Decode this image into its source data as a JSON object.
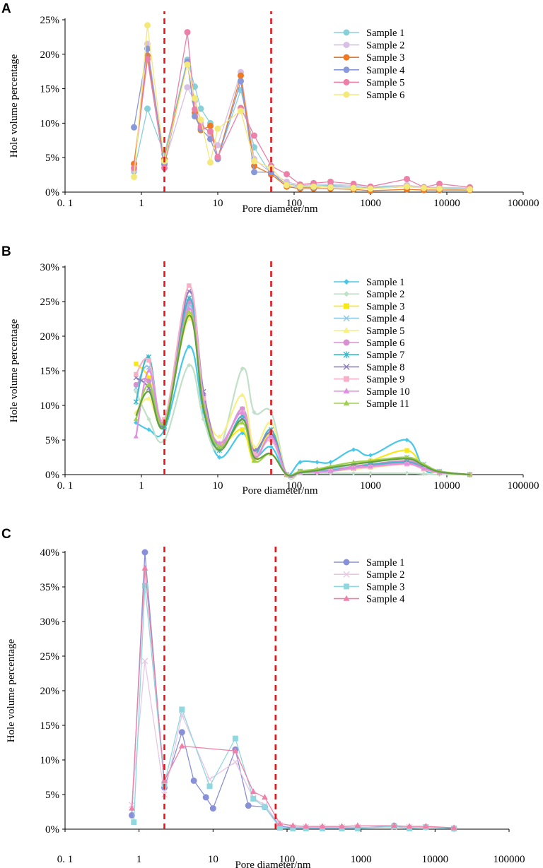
{
  "chart_data": [
    {
      "panel": "A",
      "type": "line",
      "xscale": "log",
      "xlabel": "Pore diameter/nm",
      "ylabel": "Hole volume percentage",
      "xticks": [
        {
          "v": 0.1,
          "label": "0. 1"
        },
        {
          "v": 1,
          "label": "1"
        },
        {
          "v": 10,
          "label": "10"
        },
        {
          "v": 100,
          "label": "100"
        },
        {
          "v": 1000,
          "label": "1000"
        },
        {
          "v": 10000,
          "label": "10000"
        },
        {
          "v": 100000,
          "label": "100000"
        }
      ],
      "yticks": [
        {
          "v": 0,
          "label": "0%"
        },
        {
          "v": 5,
          "label": "5%"
        },
        {
          "v": 10,
          "label": "10%"
        },
        {
          "v": 15,
          "label": "15%"
        },
        {
          "v": 20,
          "label": "20%"
        },
        {
          "v": 25,
          "label": "25%"
        }
      ],
      "ylim": [
        0,
        25
      ],
      "xlim": [
        0.1,
        100000
      ],
      "vlines": [
        2,
        50
      ],
      "legend_position": "top-right",
      "x": [
        0.8,
        1.2,
        2,
        4,
        5,
        6,
        8,
        10,
        20,
        30,
        50,
        80,
        120,
        180,
        300,
        600,
        1000,
        3000,
        5000,
        8000,
        20000
      ],
      "series": [
        {
          "name": "Sample 1",
          "color": "#88d0d8",
          "marker": "circle",
          "values": [
            3.0,
            12.1,
            5.5,
            19.2,
            15.3,
            12.1,
            10.0,
            5.0,
            14.8,
            6.5,
            2.5,
            1.2,
            0.9,
            0.9,
            1.0,
            0.8,
            0.6,
            1.0,
            0.7,
            0.6,
            0.5
          ]
        },
        {
          "name": "Sample 2",
          "color": "#d8c0e4",
          "marker": "circle",
          "values": [
            3.2,
            21.5,
            4.2,
            15.2,
            13.2,
            10.0,
            8.5,
            6.8,
            17.4,
            4.8,
            2.8,
            1.5,
            1.0,
            1.1,
            1.1,
            1.0,
            0.8,
            1.0,
            0.7,
            0.7,
            0.6
          ]
        },
        {
          "name": "Sample 3",
          "color": "#f07820",
          "marker": "circle",
          "values": [
            4.1,
            19.8,
            4.8,
            18.8,
            11.5,
            9.0,
            9.6,
            4.9,
            16.9,
            3.8,
            2.6,
            0.8,
            0.5,
            0.5,
            0.5,
            0.4,
            0.2,
            0.4,
            0.3,
            0.3,
            0.3
          ]
        },
        {
          "name": "Sample 4",
          "color": "#8898d8",
          "marker": "circle",
          "values": [
            9.4,
            20.8,
            4.0,
            18.9,
            11.0,
            9.2,
            7.7,
            4.8,
            16.1,
            2.9,
            2.9,
            1.0,
            0.7,
            0.7,
            0.8,
            0.6,
            0.5,
            0.8,
            0.6,
            0.5,
            0.4
          ]
        },
        {
          "name": "Sample 5",
          "color": "#ec80a8",
          "marker": "circle",
          "values": [
            3.5,
            19.3,
            3.5,
            23.2,
            12.0,
            9.5,
            8.8,
            5.1,
            12.2,
            8.2,
            3.8,
            2.6,
            1.1,
            1.3,
            1.5,
            1.2,
            0.8,
            1.9,
            0.7,
            1.2,
            0.7
          ]
        },
        {
          "name": "Sample 6",
          "color": "#f4e878",
          "marker": "circle",
          "values": [
            2.2,
            24.2,
            4.5,
            18.5,
            13.6,
            10.5,
            4.3,
            9.2,
            11.8,
            4.5,
            3.5,
            1.0,
            0.8,
            0.8,
            0.7,
            0.6,
            0.5,
            0.8,
            0.6,
            0.5,
            0.4
          ]
        }
      ]
    },
    {
      "panel": "B",
      "type": "line",
      "xscale": "log",
      "xlabel": "Pore diameter/nm",
      "ylabel": "Hole volume percentage",
      "xticks": [
        {
          "v": 0.1,
          "label": "0. 1"
        },
        {
          "v": 1,
          "label": "1"
        },
        {
          "v": 10,
          "label": "10"
        },
        {
          "v": 100,
          "label": "100"
        },
        {
          "v": 1000,
          "label": "1000"
        },
        {
          "v": 10000,
          "label": "10000"
        },
        {
          "v": 100000,
          "label": "100000"
        }
      ],
      "yticks": [
        {
          "v": 0,
          "label": "0%"
        },
        {
          "v": 5,
          "label": "5%"
        },
        {
          "v": 10,
          "label": "10%"
        },
        {
          "v": 15,
          "label": "15%"
        },
        {
          "v": 20,
          "label": "20%"
        },
        {
          "v": 25,
          "label": "25%"
        },
        {
          "v": 30,
          "label": "30%"
        }
      ],
      "ylim": [
        0,
        30
      ],
      "xlim": [
        0.1,
        100000
      ],
      "vlines": [
        2,
        50
      ],
      "legend_position": "top-right",
      "x": [
        0.85,
        1.25,
        2,
        4.2,
        6.5,
        10.5,
        21,
        30,
        50,
        80,
        120,
        200,
        300,
        600,
        1000,
        3000,
        5000,
        8000,
        20000
      ],
      "series": [
        {
          "name": "Sample 1",
          "color": "#48c8e8",
          "marker": "diamond",
          "values": [
            7.5,
            6.5,
            6.5,
            18.5,
            9.0,
            2.5,
            6.0,
            2.5,
            4.0,
            0.0,
            1.8,
            1.8,
            1.8,
            3.6,
            2.8,
            5.0,
            0.8,
            0.3,
            0.0
          ]
        },
        {
          "name": "Sample 2",
          "color": "#c0e0c8",
          "marker": "diamond",
          "values": [
            12.0,
            8.0,
            5.0,
            15.8,
            8.0,
            3.8,
            15.3,
            9.0,
            9.0,
            0.0,
            0.2,
            0.2,
            0.2,
            0.2,
            0.2,
            0.2,
            0.1,
            0.0,
            0.0
          ]
        },
        {
          "name": "Sample 3",
          "color": "#f8e818",
          "marker": "square",
          "values": [
            16.0,
            14.0,
            8.0,
            23.0,
            10.0,
            4.5,
            6.5,
            2.0,
            6.0,
            0.0,
            0.5,
            0.5,
            0.8,
            1.5,
            2.0,
            3.5,
            1.0,
            0.3,
            0.0
          ]
        },
        {
          "name": "Sample 4",
          "color": "#90c8e8",
          "marker": "x",
          "values": [
            12.5,
            15.5,
            7.0,
            24.5,
            10.5,
            4.0,
            9.5,
            3.5,
            6.0,
            0.0,
            0.5,
            0.6,
            0.8,
            1.5,
            1.8,
            2.5,
            1.5,
            0.5,
            0.0
          ]
        },
        {
          "name": "Sample 5",
          "color": "#f8f080",
          "marker": "triangle",
          "values": [
            9.0,
            11.0,
            7.5,
            22.5,
            11.0,
            5.5,
            11.5,
            4.0,
            7.5,
            0.0,
            0.3,
            0.4,
            0.5,
            0.8,
            1.0,
            1.5,
            0.8,
            0.2,
            0.0
          ]
        },
        {
          "name": "Sample 6",
          "color": "#d890d0",
          "marker": "circle",
          "values": [
            13.0,
            13.5,
            7.5,
            25.0,
            11.5,
            4.0,
            9.5,
            2.5,
            5.5,
            0.0,
            0.4,
            0.5,
            0.6,
            1.2,
            1.5,
            2.0,
            1.2,
            0.4,
            0.0
          ]
        },
        {
          "name": "Sample 7",
          "color": "#40b8c8",
          "marker": "asterisk",
          "values": [
            10.5,
            17.0,
            7.0,
            25.5,
            10.5,
            3.5,
            8.5,
            3.0,
            6.5,
            0.0,
            0.4,
            0.5,
            0.6,
            1.0,
            1.4,
            1.8,
            1.0,
            0.3,
            0.0
          ]
        },
        {
          "name": "Sample 8",
          "color": "#9080c0",
          "marker": "x",
          "values": [
            14.0,
            12.5,
            7.5,
            26.5,
            12.0,
            4.0,
            8.0,
            3.5,
            6.0,
            0.0,
            0.3,
            0.4,
            0.5,
            0.9,
            1.2,
            1.6,
            0.9,
            0.3,
            0.0
          ]
        },
        {
          "name": "Sample 9",
          "color": "#f8b0c8",
          "marker": "square",
          "values": [
            14.5,
            16.5,
            8.0,
            27.3,
            11.0,
            4.5,
            9.0,
            3.0,
            5.0,
            0.0,
            0.3,
            0.4,
            0.5,
            0.9,
            1.1,
            1.5,
            0.8,
            0.3,
            0.0
          ]
        },
        {
          "name": "Sample 10",
          "color": "#e090e0",
          "marker": "triangle",
          "values": [
            5.5,
            15.0,
            7.5,
            24.0,
            10.5,
            4.5,
            9.0,
            2.5,
            5.5,
            0.0,
            0.3,
            0.4,
            0.5,
            1.0,
            1.2,
            1.6,
            0.9,
            0.3,
            0.0
          ]
        },
        {
          "name": "Sample 11",
          "color": "#a0d050",
          "marker": "triangle",
          "values": [
            8.0,
            13.0,
            7.5,
            23.5,
            10.0,
            4.0,
            7.5,
            2.0,
            3.0,
            0.0,
            0.5,
            0.8,
            1.2,
            1.8,
            2.0,
            2.5,
            1.5,
            0.5,
            0.0
          ]
        },
        {
          "name": "",
          "color": "#60a040",
          "marker": "none",
          "values": [
            8.5,
            12.0,
            7.0,
            23.0,
            9.5,
            3.5,
            8.0,
            2.5,
            3.0,
            0.0,
            0.3,
            0.6,
            1.0,
            1.5,
            1.8,
            2.3,
            1.3,
            0.4,
            0.0
          ]
        }
      ]
    },
    {
      "panel": "C",
      "type": "line",
      "xscale": "log",
      "xlabel": "Pore diameter/nm",
      "ylabel": "Hole volume percentage",
      "xticks": [
        {
          "v": 0.1,
          "label": "0. 1"
        },
        {
          "v": 1,
          "label": "1"
        },
        {
          "v": 10,
          "label": "10"
        },
        {
          "v": 100,
          "label": "100"
        },
        {
          "v": 1000,
          "label": "1000"
        },
        {
          "v": 10000,
          "label": "10000"
        },
        {
          "v": 100000,
          "label": "100000"
        }
      ],
      "yticks": [
        {
          "v": 0,
          "label": "0%"
        },
        {
          "v": 5,
          "label": "5%"
        },
        {
          "v": 10,
          "label": "10%"
        },
        {
          "v": 15,
          "label": "15%"
        },
        {
          "v": 20,
          "label": "20%"
        },
        {
          "v": 25,
          "label": "25%"
        },
        {
          "v": 30,
          "label": "30%"
        },
        {
          "v": 35,
          "label": "35%"
        },
        {
          "v": 40,
          "label": "40%"
        }
      ],
      "ylim": [
        0,
        40
      ],
      "xlim": [
        0.1,
        100000
      ],
      "vlines": [
        2.2,
        70
      ],
      "legend_position": "top-right",
      "series": [
        {
          "name": "Sample 1",
          "color": "#8890d8",
          "marker": "circle",
          "x": [
            0.8,
            1.2,
            2.2,
            3.8,
            5.5,
            8,
            10,
            20,
            30,
            50,
            80,
            120,
            180,
            300,
            550,
            900,
            2800,
            4500,
            7500,
            18000
          ],
          "values": [
            2.0,
            40.0,
            6.0,
            14.0,
            7.0,
            4.6,
            3.0,
            11.5,
            3.4,
            3.2,
            0.4,
            0.2,
            0.2,
            0.2,
            0.2,
            0.2,
            0.5,
            0.2,
            0.3,
            0.1
          ]
        },
        {
          "name": "Sample 2",
          "color": "#e8c8e4",
          "marker": "x",
          "x": [
            0.8,
            1.2,
            2.2,
            3.8,
            9,
            20,
            35,
            50,
            80,
            120,
            180,
            300,
            550,
            900,
            2800,
            4500,
            7500,
            18000
          ],
          "values": [
            3.5,
            24.3,
            5.0,
            16.5,
            7.2,
            9.7,
            4.5,
            3.5,
            0.6,
            0.3,
            0.3,
            0.3,
            0.3,
            0.3,
            0.3,
            0.3,
            0.3,
            0.1
          ]
        },
        {
          "name": "Sample 3",
          "color": "#90d8e0",
          "marker": "square",
          "x": [
            0.85,
            1.2,
            2.2,
            3.8,
            9,
            20,
            35,
            50,
            80,
            120,
            180,
            300,
            550,
            900,
            2800,
            4500,
            7500,
            18000
          ],
          "values": [
            1.0,
            35.2,
            6.5,
            17.3,
            6.2,
            13.1,
            4.4,
            3.2,
            0.2,
            0.1,
            0.1,
            0.1,
            0.1,
            0.1,
            0.4,
            0.1,
            0.3,
            0.1
          ]
        },
        {
          "name": "Sample 4",
          "color": "#f080a8",
          "marker": "triangle",
          "x": [
            0.8,
            1.2,
            2.2,
            3.8,
            20,
            35,
            50,
            80,
            120,
            180,
            300,
            550,
            900,
            2800,
            4500,
            7500,
            18000
          ],
          "values": [
            3.0,
            37.7,
            7.0,
            12.0,
            11.3,
            5.4,
            4.6,
            0.8,
            0.5,
            0.4,
            0.4,
            0.4,
            0.5,
            0.5,
            0.4,
            0.4,
            0.2
          ]
        }
      ]
    }
  ]
}
